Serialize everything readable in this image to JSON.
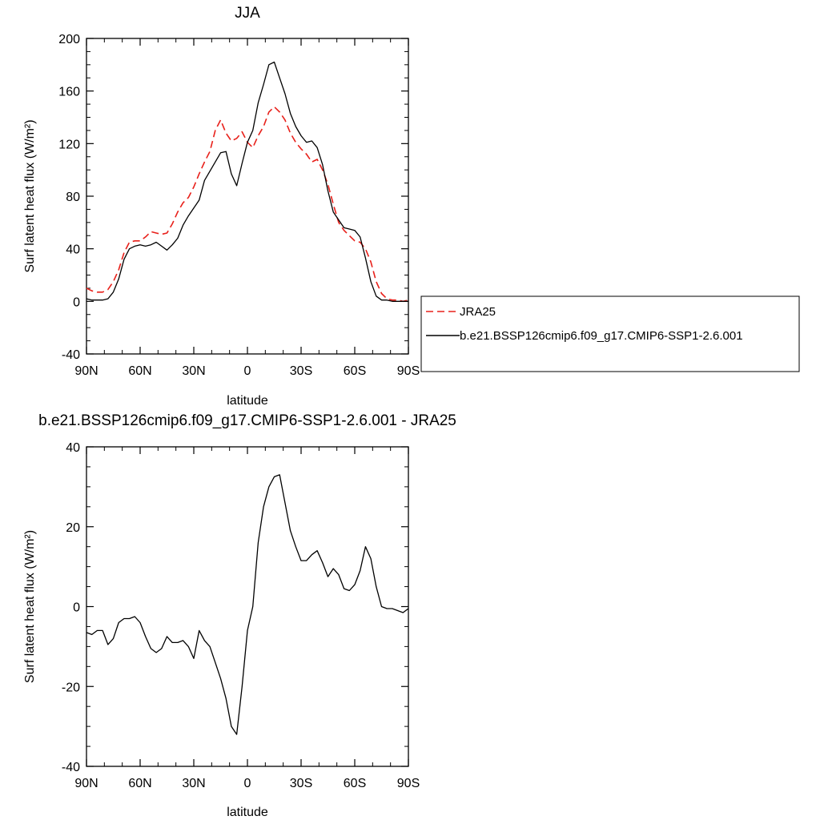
{
  "chart_data": [
    {
      "type": "line",
      "title": "JJA",
      "xlabel": "latitude",
      "ylabel": "Surf latent heat flux (W/m²)",
      "ylim": [
        -40,
        200
      ],
      "yticks": [
        -40,
        0,
        40,
        80,
        120,
        160,
        200
      ],
      "xlim": [
        90,
        -90
      ],
      "xticks": [
        {
          "value": 90,
          "label": "90N"
        },
        {
          "value": 60,
          "label": "60N"
        },
        {
          "value": 30,
          "label": "30N"
        },
        {
          "value": 0,
          "label": "0"
        },
        {
          "value": -30,
          "label": "30S"
        },
        {
          "value": -60,
          "label": "60S"
        },
        {
          "value": -90,
          "label": "90S"
        }
      ],
      "legend_position": "right",
      "series": [
        {
          "name": "JRA25",
          "color": "#e8201a",
          "style": "dashed",
          "x": [
            90,
            87,
            84,
            81,
            78,
            75,
            72,
            69,
            66,
            63,
            60,
            57,
            54,
            51,
            48,
            45,
            42,
            39,
            36,
            33,
            30,
            27,
            24,
            21,
            18,
            15,
            12,
            9,
            6,
            3,
            0,
            -3,
            -6,
            -9,
            -12,
            -15,
            -18,
            -21,
            -24,
            -27,
            -30,
            -33,
            -36,
            -39,
            -42,
            -45,
            -48,
            -51,
            -54,
            -57,
            -60,
            -63,
            -66,
            -69,
            -72,
            -75,
            -78,
            -81,
            -84,
            -87,
            -90
          ],
          "values": [
            10,
            8,
            7,
            7,
            9,
            15,
            24,
            37,
            45,
            46,
            46,
            49,
            53,
            52,
            51,
            52,
            59,
            68,
            75,
            79,
            87,
            97,
            106,
            114,
            130,
            138,
            128,
            122,
            124,
            129,
            121,
            117,
            126,
            133,
            144,
            148,
            144,
            138,
            128,
            121,
            116,
            112,
            106,
            108,
            100,
            89,
            74,
            60,
            54,
            50,
            46,
            45,
            40,
            30,
            15,
            6,
            2,
            1,
            1,
            0,
            1
          ]
        },
        {
          "name": "b.e21.BSSP126cmip6.f09_g17.CMIP6-SSP1-2.6.001",
          "color": "#000000",
          "style": "solid",
          "x": [
            90,
            87,
            84,
            81,
            78,
            75,
            72,
            69,
            66,
            63,
            60,
            57,
            54,
            51,
            48,
            45,
            42,
            39,
            36,
            33,
            30,
            27,
            24,
            21,
            18,
            15,
            12,
            9,
            6,
            3,
            0,
            -3,
            -6,
            -9,
            -12,
            -15,
            -18,
            -21,
            -24,
            -27,
            -30,
            -33,
            -36,
            -39,
            -42,
            -45,
            -48,
            -51,
            -54,
            -57,
            -60,
            -63,
            -66,
            -69,
            -72,
            -75,
            -78,
            -81,
            -84,
            -87,
            -90
          ],
          "values": [
            2,
            1,
            1,
            1,
            2,
            7,
            17,
            32,
            40,
            42,
            43,
            42,
            43,
            45,
            42,
            39,
            43,
            48,
            58,
            65,
            71,
            77,
            92,
            99,
            106,
            113,
            114,
            97,
            88,
            105,
            121,
            130,
            151,
            165,
            180,
            182,
            170,
            158,
            143,
            133,
            126,
            121,
            122,
            117,
            104,
            84,
            68,
            62,
            56,
            55,
            54,
            49,
            33,
            15,
            4,
            1,
            1,
            0,
            0,
            0,
            0
          ]
        }
      ]
    },
    {
      "type": "line",
      "title": "b.e21.BSSP126cmip6.f09_g17.CMIP6-SSP1-2.6.001 - JRA25",
      "xlabel": "latitude",
      "ylabel": "Surf latent heat flux (W/m²)",
      "ylim": [
        -40,
        40
      ],
      "yticks": [
        -40,
        -20,
        0,
        20,
        40
      ],
      "xlim": [
        90,
        -90
      ],
      "xticks": [
        {
          "value": 90,
          "label": "90N"
        },
        {
          "value": 60,
          "label": "60N"
        },
        {
          "value": 30,
          "label": "30N"
        },
        {
          "value": 0,
          "label": "0"
        },
        {
          "value": -30,
          "label": "30S"
        },
        {
          "value": -60,
          "label": "60S"
        },
        {
          "value": -90,
          "label": "90S"
        }
      ],
      "series": [
        {
          "color": "#000000",
          "style": "solid",
          "x": [
            90,
            87,
            84,
            81,
            78,
            75,
            72,
            69,
            66,
            63,
            60,
            57,
            54,
            51,
            48,
            45,
            42,
            39,
            36,
            33,
            30,
            27,
            24,
            21,
            18,
            15,
            12,
            9,
            6,
            3,
            0,
            -3,
            -6,
            -9,
            -12,
            -15,
            -18,
            -21,
            -24,
            -27,
            -30,
            -33,
            -36,
            -39,
            -42,
            -45,
            -48,
            -51,
            -54,
            -57,
            -60,
            -63,
            -66,
            -69,
            -72,
            -75,
            -78,
            -81,
            -84,
            -87,
            -90
          ],
          "values": [
            -6.5,
            -7,
            -6,
            -6,
            -9.5,
            -8,
            -4,
            -3,
            -3,
            -2.5,
            -4,
            -7.5,
            -10.5,
            -11.5,
            -10.5,
            -7.5,
            -9,
            -9,
            -8.5,
            -10,
            -13,
            -6,
            -8.5,
            -10,
            -14,
            -18,
            -23,
            -30,
            -32,
            -20,
            -6,
            0,
            16,
            25,
            30,
            32.5,
            33,
            26,
            19,
            15,
            11.5,
            11.5,
            13,
            14,
            11,
            7.5,
            9.5,
            8,
            4.5,
            4,
            5.5,
            9,
            15,
            12,
            5,
            0,
            -0.5,
            -0.5,
            -1,
            -1.5,
            -0.5
          ]
        }
      ]
    }
  ]
}
